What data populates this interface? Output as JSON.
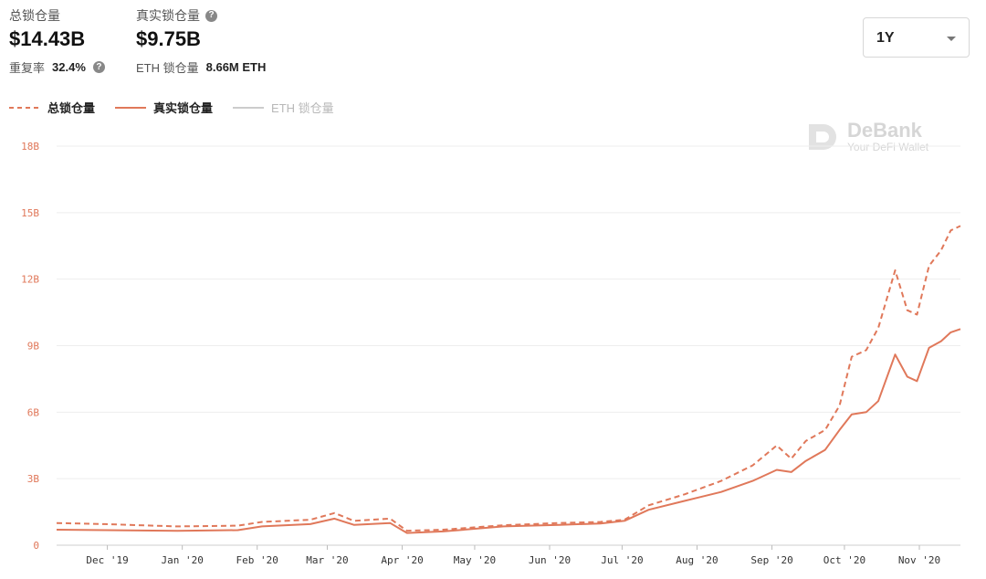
{
  "stats": {
    "total": {
      "label": "总锁仓量",
      "value": "$14.43B",
      "sub_label": "重复率",
      "sub_value": "32.4%"
    },
    "real": {
      "label": "真实锁仓量",
      "value": "$9.75B",
      "sub_label": "ETH 锁仓量",
      "sub_value": "8.66M ETH"
    }
  },
  "range_select": {
    "value": "1Y"
  },
  "brand": {
    "name": "DeBank",
    "tagline": "Your DeFi Wallet"
  },
  "colors": {
    "accent": "#e0785a",
    "grid": "#eeeeee",
    "muted": "#cccccc"
  },
  "chart_data": {
    "type": "line",
    "ylim": [
      0,
      18
    ],
    "y_ticks": [
      "0",
      "3B",
      "6B",
      "9B",
      "12B",
      "15B",
      "18B"
    ],
    "y_tick_values": [
      0,
      3,
      6,
      9,
      12,
      15,
      18
    ],
    "x_ticks": [
      "Dec '19",
      "Jan '20",
      "Feb '20",
      "Mar '20",
      "Apr '20",
      "May '20",
      "Jun '20",
      "Jul '20",
      "Aug '20",
      "Sep '20",
      "Oct '20",
      "Nov '20"
    ],
    "x_tick_values": [
      1,
      32,
      63,
      92,
      123,
      153,
      184,
      214,
      245,
      276,
      306,
      337
    ],
    "xlim": [
      -20,
      354
    ],
    "series": [
      {
        "name": "总锁仓量",
        "style": "dashed",
        "points": [
          [
            -20,
            1.0
          ],
          [
            0,
            0.95
          ],
          [
            30,
            0.85
          ],
          [
            55,
            0.88
          ],
          [
            65,
            1.05
          ],
          [
            85,
            1.15
          ],
          [
            95,
            1.45
          ],
          [
            103,
            1.1
          ],
          [
            118,
            1.2
          ],
          [
            125,
            0.65
          ],
          [
            140,
            0.7
          ],
          [
            165,
            0.9
          ],
          [
            188,
            1.0
          ],
          [
            205,
            1.05
          ],
          [
            215,
            1.15
          ],
          [
            225,
            1.8
          ],
          [
            240,
            2.3
          ],
          [
            255,
            2.9
          ],
          [
            268,
            3.6
          ],
          [
            278,
            4.5
          ],
          [
            284,
            3.9
          ],
          [
            290,
            4.7
          ],
          [
            298,
            5.2
          ],
          [
            304,
            6.3
          ],
          [
            309,
            8.5
          ],
          [
            315,
            8.8
          ],
          [
            320,
            9.8
          ],
          [
            327,
            12.4
          ],
          [
            332,
            10.6
          ],
          [
            336,
            10.4
          ],
          [
            341,
            12.6
          ],
          [
            346,
            13.3
          ],
          [
            350,
            14.2
          ],
          [
            354,
            14.4
          ]
        ]
      },
      {
        "name": "真实锁仓量",
        "style": "solid",
        "points": [
          [
            -20,
            0.7
          ],
          [
            0,
            0.68
          ],
          [
            30,
            0.65
          ],
          [
            55,
            0.68
          ],
          [
            65,
            0.85
          ],
          [
            85,
            0.95
          ],
          [
            95,
            1.2
          ],
          [
            103,
            0.92
          ],
          [
            118,
            1.0
          ],
          [
            125,
            0.55
          ],
          [
            140,
            0.62
          ],
          [
            165,
            0.85
          ],
          [
            188,
            0.92
          ],
          [
            205,
            0.98
          ],
          [
            215,
            1.1
          ],
          [
            225,
            1.6
          ],
          [
            240,
            2.0
          ],
          [
            255,
            2.4
          ],
          [
            268,
            2.9
          ],
          [
            278,
            3.4
          ],
          [
            284,
            3.3
          ],
          [
            290,
            3.8
          ],
          [
            298,
            4.3
          ],
          [
            304,
            5.2
          ],
          [
            309,
            5.9
          ],
          [
            315,
            6.0
          ],
          [
            320,
            6.5
          ],
          [
            327,
            8.6
          ],
          [
            332,
            7.6
          ],
          [
            336,
            7.4
          ],
          [
            341,
            8.9
          ],
          [
            346,
            9.2
          ],
          [
            350,
            9.6
          ],
          [
            354,
            9.75
          ]
        ]
      },
      {
        "name": "ETH 锁仓量",
        "style": "hidden",
        "points": []
      }
    ]
  }
}
